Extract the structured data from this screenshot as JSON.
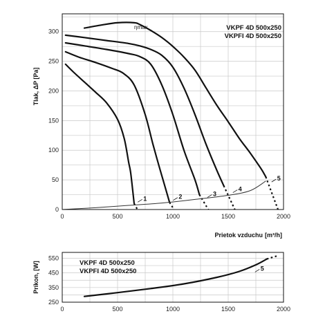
{
  "chart_data": [
    {
      "type": "line",
      "legend": [
        "VKPF 4D 500x250",
        "VKPFI 4D 500x250"
      ],
      "legend_position": "top-right",
      "xlabel": "Prietok vzduchu",
      "xunit": "[m³/h]",
      "ylabel": "Tlak, ΔP [Pa]",
      "xlim": [
        0,
        2000
      ],
      "ylim": [
        0,
        330
      ],
      "xticks": [
        "0",
        "500",
        "1000",
        "1500",
        "2000"
      ],
      "yticks": [
        "0",
        "50",
        "100",
        "150",
        "200",
        "250",
        "300"
      ],
      "grid": true,
      "eta_label": "ηmax",
      "series": [
        {
          "name": "1",
          "solid": [
            [
              30,
              245
            ],
            [
              100,
              232
            ],
            [
              200,
              215
            ],
            [
              300,
              198
            ],
            [
              400,
              180
            ],
            [
              500,
              152
            ],
            [
              560,
              120
            ],
            [
              600,
              80
            ],
            [
              620,
              60
            ],
            [
              650,
              10
            ]
          ],
          "dashed": [
            [
              650,
              10
            ],
            [
              680,
              0
            ]
          ]
        },
        {
          "name": "2",
          "solid": [
            [
              30,
              266
            ],
            [
              150,
              257
            ],
            [
              300,
              248
            ],
            [
              450,
              238
            ],
            [
              550,
              230
            ],
            [
              650,
              210
            ],
            [
              750,
              160
            ],
            [
              820,
              110
            ],
            [
              880,
              70
            ],
            [
              950,
              25
            ],
            [
              970,
              12
            ]
          ],
          "dashed": [
            [
              970,
              12
            ],
            [
              1010,
              0
            ]
          ]
        },
        {
          "name": "3",
          "solid": [
            [
              30,
              281
            ],
            [
              200,
              276
            ],
            [
              400,
              270
            ],
            [
              600,
              263
            ],
            [
              700,
              258
            ],
            [
              800,
              245
            ],
            [
              900,
              210
            ],
            [
              1000,
              160
            ],
            [
              1100,
              100
            ],
            [
              1200,
              50
            ],
            [
              1240,
              25
            ]
          ],
          "dashed": [
            [
              1240,
              25
            ],
            [
              1320,
              0
            ]
          ]
        },
        {
          "name": "4",
          "solid": [
            [
              30,
              294
            ],
            [
              200,
              290
            ],
            [
              400,
              285
            ],
            [
              600,
              280
            ],
            [
              700,
              276
            ],
            [
              800,
              270
            ],
            [
              900,
              260
            ],
            [
              1000,
              240
            ],
            [
              1100,
              205
            ],
            [
              1200,
              160
            ],
            [
              1300,
              110
            ],
            [
              1400,
              65
            ],
            [
              1460,
              40
            ]
          ],
          "dashed": [
            [
              1460,
              40
            ],
            [
              1560,
              0
            ]
          ]
        },
        {
          "name": "5",
          "solid": [
            [
              200,
              306
            ],
            [
              350,
              311
            ],
            [
              500,
              315
            ],
            [
              650,
              315
            ],
            [
              700,
              312
            ],
            [
              800,
              302
            ],
            [
              900,
              290
            ],
            [
              1000,
              275
            ],
            [
              1100,
              257
            ],
            [
              1200,
              235
            ],
            [
              1300,
              205
            ],
            [
              1400,
              175
            ],
            [
              1500,
              148
            ],
            [
              1600,
              120
            ],
            [
              1700,
              95
            ],
            [
              1800,
              68
            ],
            [
              1840,
              55
            ]
          ],
          "dashed": [
            [
              1840,
              55
            ],
            [
              1950,
              0
            ]
          ]
        },
        {
          "name": "system",
          "solid": [
            [
              0,
              0
            ],
            [
              300,
              3
            ],
            [
              600,
              7
            ],
            [
              900,
              11
            ],
            [
              1200,
              17
            ],
            [
              1500,
              24
            ],
            [
              1700,
              32
            ],
            [
              1840,
              48
            ]
          ],
          "dashed": []
        }
      ],
      "labels": [
        {
          "text": "1",
          "x": 720,
          "y": 16
        },
        {
          "text": "2",
          "x": 1040,
          "y": 19
        },
        {
          "text": "3",
          "x": 1350,
          "y": 24
        },
        {
          "text": "4",
          "x": 1580,
          "y": 32
        },
        {
          "text": "5",
          "x": 1930,
          "y": 50
        }
      ]
    },
    {
      "type": "line",
      "legend": [
        "VKPF 4D 500x250",
        "VKPFI 4D 500x250"
      ],
      "legend_position": "top-left",
      "ylabel": "Príkon, [W]",
      "xlim": [
        0,
        2000
      ],
      "ylim": [
        250,
        590
      ],
      "xticks": [
        "0",
        "500",
        "1000",
        "1500",
        "2000"
      ],
      "yticks": [
        "250",
        "350",
        "450",
        "550"
      ],
      "grid": true,
      "series": [
        {
          "name": "5",
          "solid": [
            [
              200,
              289
            ],
            [
              500,
              315
            ],
            [
              800,
              343
            ],
            [
              1100,
              375
            ],
            [
              1400,
              420
            ],
            [
              1600,
              460
            ],
            [
              1750,
              505
            ],
            [
              1850,
              545
            ]
          ],
          "dashed": [
            [
              1850,
              545
            ],
            [
              1950,
              568
            ]
          ]
        }
      ],
      "labels": [
        {
          "text": "5",
          "x": 1780,
          "y": 470
        }
      ]
    }
  ]
}
